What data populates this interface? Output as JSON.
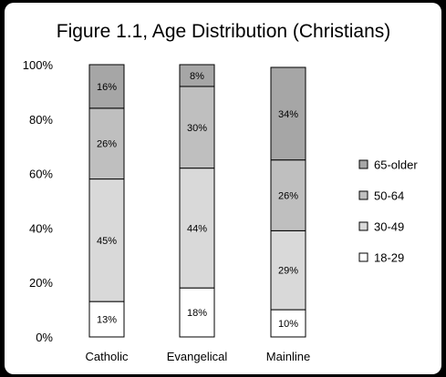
{
  "chart_data": {
    "type": "bar",
    "stacked": true,
    "title": "Figure 1.1, Age Distribution (Christians)",
    "categories": [
      "Catholic",
      "Evangelical",
      "Mainline"
    ],
    "series": [
      {
        "name": "18-29",
        "values": [
          13,
          18,
          10
        ],
        "labels": [
          "13%",
          "18%",
          "10%"
        ],
        "color": "#ffffff"
      },
      {
        "name": "30-49",
        "values": [
          45,
          44,
          29
        ],
        "labels": [
          "45%",
          "44%",
          "29%"
        ],
        "color": "#d9d9d9"
      },
      {
        "name": "50-64",
        "values": [
          26,
          30,
          26
        ],
        "labels": [
          "26%",
          "30%",
          "26%"
        ],
        "color": "#bfbfbf"
      },
      {
        "name": "65-older",
        "values": [
          16,
          8,
          34
        ],
        "labels": [
          "16%",
          "8%",
          "34%"
        ],
        "color": "#a6a6a6"
      }
    ],
    "yticks": [
      {
        "value": 0,
        "label": "0%"
      },
      {
        "value": 20,
        "label": "20%"
      },
      {
        "value": 40,
        "label": "40%"
      },
      {
        "value": 60,
        "label": "60%"
      },
      {
        "value": 80,
        "label": "80%"
      },
      {
        "value": 100,
        "label": "100%"
      }
    ],
    "ylim": [
      0,
      100
    ],
    "grid": false,
    "legend_position": "right",
    "legend_order": [
      "65-older",
      "50-64",
      "30-49",
      "18-29"
    ],
    "bar_stroke_color": "#000000"
  }
}
